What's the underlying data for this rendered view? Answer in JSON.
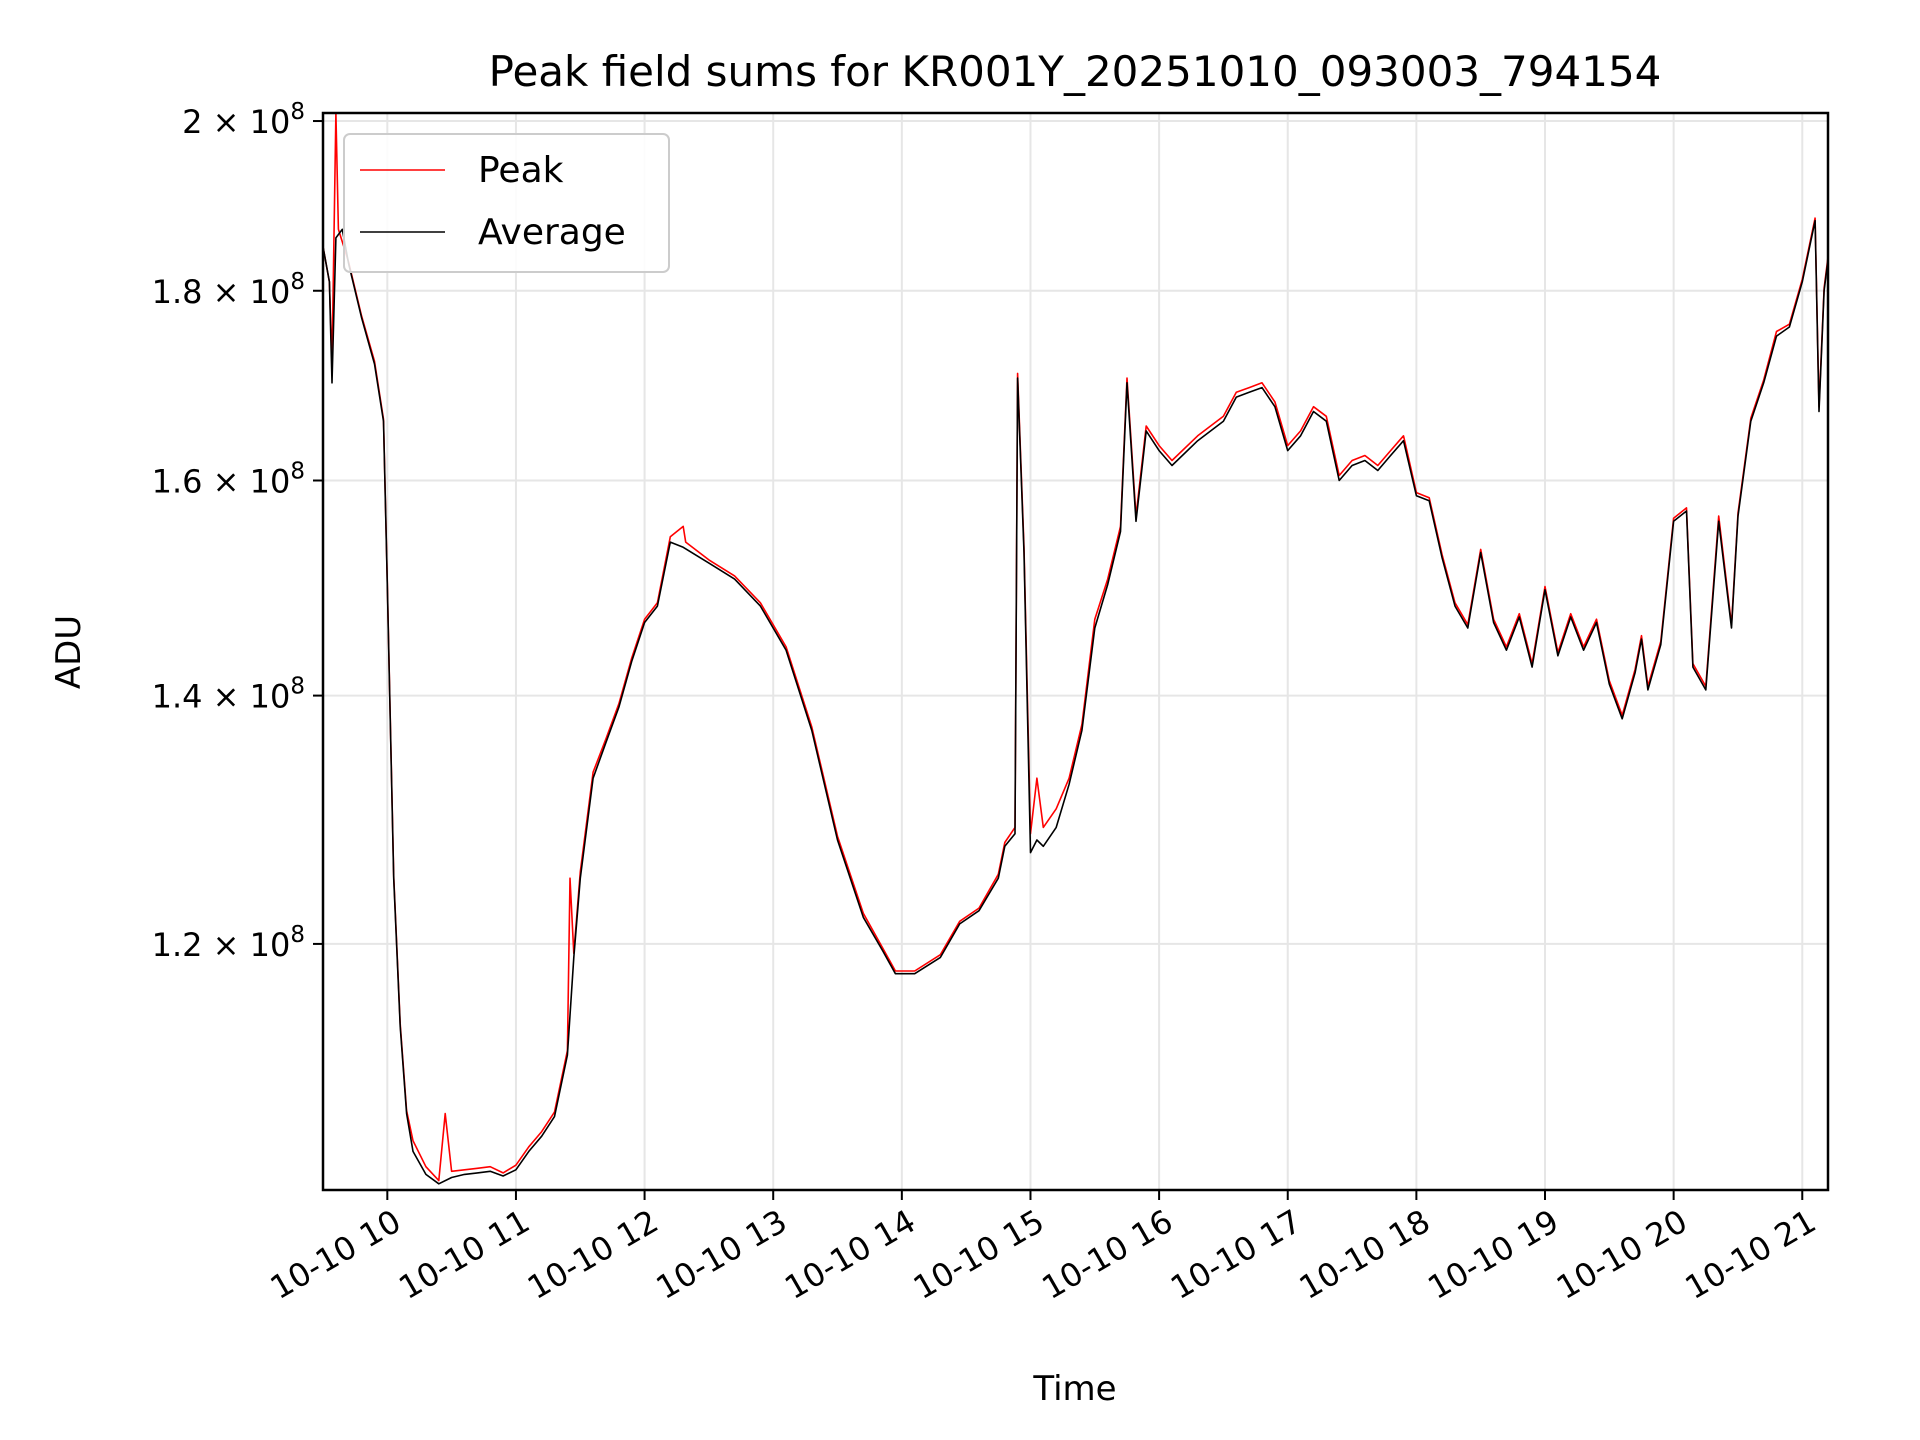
{
  "chart_data": {
    "type": "line",
    "title": "Peak field sums for KR001Y_20251010_093003_794154",
    "xlabel": "Time",
    "ylabel": "ADU",
    "yscale": "log",
    "ylim": [
      103000000,
      201000000
    ],
    "xlim": [
      9.5,
      21.2
    ],
    "grid": true,
    "legend_position": "top-left",
    "x_ticks": [
      {
        "value": 10,
        "label": "10-10 10"
      },
      {
        "value": 11,
        "label": "10-10 11"
      },
      {
        "value": 12,
        "label": "10-10 12"
      },
      {
        "value": 13,
        "label": "10-10 13"
      },
      {
        "value": 14,
        "label": "10-10 14"
      },
      {
        "value": 15,
        "label": "10-10 15"
      },
      {
        "value": 16,
        "label": "10-10 16"
      },
      {
        "value": 17,
        "label": "10-10 17"
      },
      {
        "value": 18,
        "label": "10-10 18"
      },
      {
        "value": 19,
        "label": "10-10 19"
      },
      {
        "value": 20,
        "label": "10-10 20"
      },
      {
        "value": 21,
        "label": "10-10 21"
      }
    ],
    "y_ticks": [
      {
        "value": 120000000,
        "mantissa": "1.2",
        "base": "10",
        "exp": "8"
      },
      {
        "value": 140000000,
        "mantissa": "1.4",
        "base": "10",
        "exp": "8"
      },
      {
        "value": 160000000,
        "mantissa": "1.6",
        "base": "10",
        "exp": "8"
      },
      {
        "value": 180000000,
        "mantissa": "1.8",
        "base": "10",
        "exp": "8"
      },
      {
        "value": 200000000,
        "mantissa": "2",
        "base": "10",
        "exp": "8"
      }
    ],
    "series": [
      {
        "name": "Average",
        "color": "#000000",
        "points": [
          [
            9.5,
            185000000
          ],
          [
            9.55,
            181000000
          ],
          [
            9.57,
            170000000
          ],
          [
            9.6,
            186000000
          ],
          [
            9.65,
            187000000
          ],
          [
            9.7,
            183000000
          ],
          [
            9.8,
            177000000
          ],
          [
            9.9,
            172000000
          ],
          [
            9.97,
            166000000
          ],
          [
            10.0,
            150000000
          ],
          [
            10.05,
            125000000
          ],
          [
            10.1,
            114000000
          ],
          [
            10.15,
            108000000
          ],
          [
            10.2,
            105500000
          ],
          [
            10.3,
            104000000
          ],
          [
            10.4,
            103400000
          ],
          [
            10.5,
            103800000
          ],
          [
            10.6,
            104000000
          ],
          [
            10.7,
            104100000
          ],
          [
            10.8,
            104200000
          ],
          [
            10.9,
            103900000
          ],
          [
            11.0,
            104300000
          ],
          [
            11.1,
            105500000
          ],
          [
            11.2,
            106500000
          ],
          [
            11.3,
            107800000
          ],
          [
            11.4,
            112000000
          ],
          [
            11.45,
            119000000
          ],
          [
            11.5,
            125000000
          ],
          [
            11.6,
            133000000
          ],
          [
            11.7,
            136000000
          ],
          [
            11.8,
            139000000
          ],
          [
            11.9,
            143000000
          ],
          [
            12.0,
            146500000
          ],
          [
            12.1,
            148000000
          ],
          [
            12.2,
            154000000
          ],
          [
            12.3,
            153500000
          ],
          [
            12.5,
            152000000
          ],
          [
            12.7,
            150500000
          ],
          [
            12.9,
            148000000
          ],
          [
            13.1,
            144000000
          ],
          [
            13.3,
            137000000
          ],
          [
            13.5,
            128000000
          ],
          [
            13.7,
            122000000
          ],
          [
            13.85,
            119500000
          ],
          [
            13.95,
            117800000
          ],
          [
            14.1,
            117800000
          ],
          [
            14.3,
            119000000
          ],
          [
            14.45,
            121500000
          ],
          [
            14.6,
            122500000
          ],
          [
            14.75,
            125000000
          ],
          [
            14.8,
            127500000
          ],
          [
            14.88,
            128500000
          ],
          [
            14.9,
            170500000
          ],
          [
            14.95,
            153000000
          ],
          [
            15.0,
            127000000
          ],
          [
            15.05,
            128000000
          ],
          [
            15.1,
            127500000
          ],
          [
            15.2,
            129000000
          ],
          [
            15.3,
            132500000
          ],
          [
            15.4,
            137000000
          ],
          [
            15.5,
            146000000
          ],
          [
            15.6,
            150000000
          ],
          [
            15.7,
            155000000
          ],
          [
            15.75,
            170000000
          ],
          [
            15.82,
            156000000
          ],
          [
            15.9,
            165000000
          ],
          [
            16.0,
            163000000
          ],
          [
            16.1,
            161500000
          ],
          [
            16.3,
            164000000
          ],
          [
            16.5,
            166000000
          ],
          [
            16.6,
            168500000
          ],
          [
            16.7,
            169000000
          ],
          [
            16.8,
            169500000
          ],
          [
            16.9,
            167500000
          ],
          [
            17.0,
            163000000
          ],
          [
            17.1,
            164500000
          ],
          [
            17.2,
            167000000
          ],
          [
            17.3,
            166000000
          ],
          [
            17.4,
            160000000
          ],
          [
            17.5,
            161500000
          ],
          [
            17.6,
            162000000
          ],
          [
            17.7,
            161000000
          ],
          [
            17.8,
            162500000
          ],
          [
            17.9,
            164000000
          ],
          [
            18.0,
            158500000
          ],
          [
            18.1,
            158000000
          ],
          [
            18.2,
            152500000
          ],
          [
            18.3,
            148000000
          ],
          [
            18.4,
            146000000
          ],
          [
            18.5,
            153000000
          ],
          [
            18.6,
            146500000
          ],
          [
            18.7,
            144000000
          ],
          [
            18.8,
            147000000
          ],
          [
            18.9,
            142500000
          ],
          [
            19.0,
            149500000
          ],
          [
            19.1,
            143500000
          ],
          [
            19.2,
            147000000
          ],
          [
            19.3,
            144000000
          ],
          [
            19.4,
            146500000
          ],
          [
            19.5,
            141000000
          ],
          [
            19.6,
            138000000
          ],
          [
            19.7,
            142000000
          ],
          [
            19.75,
            145000000
          ],
          [
            19.8,
            140500000
          ],
          [
            19.9,
            144500000
          ],
          [
            20.0,
            156000000
          ],
          [
            20.1,
            157000000
          ],
          [
            20.15,
            142500000
          ],
          [
            20.25,
            140500000
          ],
          [
            20.35,
            156000000
          ],
          [
            20.45,
            146000000
          ],
          [
            20.5,
            156500000
          ],
          [
            20.6,
            166000000
          ],
          [
            20.7,
            170000000
          ],
          [
            20.8,
            175000000
          ],
          [
            20.9,
            176000000
          ],
          [
            21.0,
            181000000
          ],
          [
            21.1,
            188000000
          ],
          [
            21.13,
            167000000
          ],
          [
            21.17,
            180000000
          ],
          [
            21.2,
            183500000
          ]
        ]
      },
      {
        "name": "Peak",
        "color": "#ff0000",
        "points": [
          [
            9.5,
            185000000
          ],
          [
            9.55,
            181000000
          ],
          [
            9.57,
            172000000
          ],
          [
            9.6,
            201000000
          ],
          [
            9.62,
            187000000
          ],
          [
            9.7,
            183200000
          ],
          [
            9.8,
            177200000
          ],
          [
            9.9,
            172300000
          ],
          [
            9.97,
            166200000
          ],
          [
            10.0,
            150200000
          ],
          [
            10.05,
            125200000
          ],
          [
            10.1,
            114200000
          ],
          [
            10.15,
            108200000
          ],
          [
            10.2,
            106200000
          ],
          [
            10.3,
            104500000
          ],
          [
            10.4,
            103600000
          ],
          [
            10.45,
            108000000
          ],
          [
            10.5,
            104200000
          ],
          [
            10.6,
            104300000
          ],
          [
            10.7,
            104400000
          ],
          [
            10.8,
            104500000
          ],
          [
            10.9,
            104100000
          ],
          [
            11.0,
            104600000
          ],
          [
            11.1,
            105800000
          ],
          [
            11.2,
            106800000
          ],
          [
            11.3,
            108100000
          ],
          [
            11.4,
            112300000
          ],
          [
            11.42,
            125000000
          ],
          [
            11.45,
            119300000
          ],
          [
            11.5,
            125500000
          ],
          [
            11.6,
            133500000
          ],
          [
            11.7,
            136300000
          ],
          [
            11.8,
            139300000
          ],
          [
            11.9,
            143300000
          ],
          [
            12.0,
            146800000
          ],
          [
            12.1,
            148300000
          ],
          [
            12.2,
            154500000
          ],
          [
            12.3,
            155500000
          ],
          [
            12.32,
            154000000
          ],
          [
            12.5,
            152300000
          ],
          [
            12.7,
            150800000
          ],
          [
            12.9,
            148300000
          ],
          [
            13.1,
            144300000
          ],
          [
            13.3,
            137300000
          ],
          [
            13.5,
            128300000
          ],
          [
            13.7,
            122300000
          ],
          [
            13.85,
            119700000
          ],
          [
            13.95,
            118000000
          ],
          [
            14.1,
            118000000
          ],
          [
            14.3,
            119200000
          ],
          [
            14.45,
            121700000
          ],
          [
            14.6,
            122700000
          ],
          [
            14.75,
            125300000
          ],
          [
            14.8,
            127800000
          ],
          [
            14.88,
            129000000
          ],
          [
            14.9,
            171000000
          ],
          [
            14.95,
            153500000
          ],
          [
            15.0,
            128500000
          ],
          [
            15.05,
            133000000
          ],
          [
            15.1,
            129000000
          ],
          [
            15.2,
            130500000
          ],
          [
            15.3,
            133000000
          ],
          [
            15.4,
            137500000
          ],
          [
            15.5,
            146800000
          ],
          [
            15.6,
            150500000
          ],
          [
            15.7,
            155500000
          ],
          [
            15.75,
            170500000
          ],
          [
            15.82,
            156500000
          ],
          [
            15.9,
            165500000
          ],
          [
            16.0,
            163500000
          ],
          [
            16.1,
            162000000
          ],
          [
            16.3,
            164500000
          ],
          [
            16.5,
            166500000
          ],
          [
            16.6,
            169000000
          ],
          [
            16.7,
            169500000
          ],
          [
            16.8,
            170000000
          ],
          [
            16.9,
            168000000
          ],
          [
            17.0,
            163500000
          ],
          [
            17.1,
            165000000
          ],
          [
            17.2,
            167500000
          ],
          [
            17.3,
            166500000
          ],
          [
            17.4,
            160500000
          ],
          [
            17.5,
            162000000
          ],
          [
            17.6,
            162500000
          ],
          [
            17.7,
            161500000
          ],
          [
            17.8,
            163000000
          ],
          [
            17.9,
            164500000
          ],
          [
            18.0,
            158800000
          ],
          [
            18.1,
            158300000
          ],
          [
            18.2,
            152800000
          ],
          [
            18.3,
            148300000
          ],
          [
            18.4,
            146300000
          ],
          [
            18.5,
            153300000
          ],
          [
            18.6,
            146800000
          ],
          [
            18.7,
            144300000
          ],
          [
            18.8,
            147300000
          ],
          [
            18.9,
            142800000
          ],
          [
            19.0,
            149800000
          ],
          [
            19.1,
            143800000
          ],
          [
            19.2,
            147300000
          ],
          [
            19.3,
            144300000
          ],
          [
            19.4,
            146800000
          ],
          [
            19.5,
            141300000
          ],
          [
            19.6,
            138300000
          ],
          [
            19.7,
            142300000
          ],
          [
            19.75,
            145300000
          ],
          [
            19.8,
            140800000
          ],
          [
            19.9,
            144800000
          ],
          [
            20.0,
            156300000
          ],
          [
            20.1,
            157300000
          ],
          [
            20.15,
            142800000
          ],
          [
            20.25,
            140800000
          ],
          [
            20.35,
            156500000
          ],
          [
            20.45,
            146300000
          ],
          [
            20.5,
            156800000
          ],
          [
            20.6,
            166300000
          ],
          [
            20.7,
            170300000
          ],
          [
            20.8,
            175500000
          ],
          [
            20.9,
            176300000
          ],
          [
            21.0,
            181300000
          ],
          [
            21.1,
            188300000
          ],
          [
            21.13,
            167500000
          ],
          [
            21.17,
            180300000
          ],
          [
            21.2,
            183800000
          ]
        ]
      }
    ]
  }
}
